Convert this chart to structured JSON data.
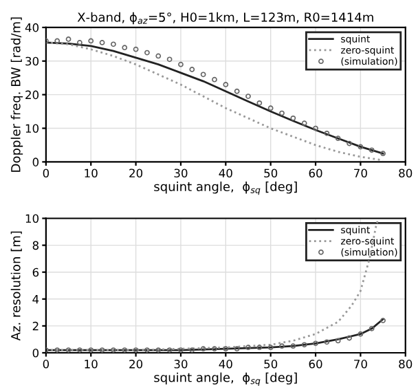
{
  "chart_data": [
    {
      "type": "line",
      "title": "X-band, ϕ$_{az}$=5°, H0=1km, L=123m, R0=1414m",
      "xlabel": "squint angle,  ϕ$_{sq}$ [deg]",
      "ylabel": "Doppler freq. BW [rad/m]",
      "xlim": [
        0,
        80
      ],
      "xticks": [
        0,
        10,
        20,
        30,
        40,
        50,
        60,
        70,
        80
      ],
      "ylim": [
        0,
        40
      ],
      "yticks": [
        0,
        10,
        20,
        30,
        40
      ],
      "grid": true,
      "legend": "top right",
      "series": [
        {
          "name": "squint",
          "color": "#222222",
          "line_style": "solid",
          "x": [
            0,
            5,
            10,
            15,
            20,
            25,
            30,
            35,
            40,
            45,
            50,
            55,
            60,
            65,
            70,
            75
          ],
          "values": [
            35.5,
            35.2,
            34.5,
            33,
            31,
            29,
            26.5,
            24,
            21,
            18,
            15,
            12.2,
            9.5,
            7,
            4.5,
            2.5
          ]
        },
        {
          "name": "zero-squint",
          "color": "#999999",
          "line_style": "dotted",
          "x": [
            0,
            5,
            10,
            15,
            20,
            25,
            30,
            35,
            40,
            45,
            50,
            55,
            60,
            65,
            70,
            75
          ],
          "values": [
            35.5,
            35,
            33.5,
            31.5,
            29,
            26,
            23,
            19.5,
            16,
            13,
            10,
            7.5,
            5,
            3,
            1.5,
            0.5
          ]
        },
        {
          "name": "(simulation)",
          "type": "scatter",
          "marker": "circle",
          "color": "#666666",
          "x": [
            0,
            2.5,
            5,
            7.5,
            10,
            12.5,
            15,
            17.5,
            20,
            22.5,
            25,
            27.5,
            30,
            32.5,
            35,
            37.5,
            40,
            42.5,
            45,
            47.5,
            50,
            52.5,
            55,
            57.5,
            60,
            62.5,
            65,
            67.5,
            70,
            72.5,
            75
          ],
          "values": [
            36,
            36,
            36.5,
            35.5,
            36,
            35.5,
            35,
            34,
            33.5,
            32.5,
            31.5,
            30.5,
            29,
            27.5,
            26,
            24.5,
            23,
            21,
            19.5,
            17.5,
            16,
            14.5,
            13,
            11.5,
            10,
            8.5,
            7,
            5.5,
            4.5,
            3.5,
            2.5
          ]
        }
      ]
    },
    {
      "type": "line",
      "xlabel": "squint angle,  ϕ$_{sq}$ [deg]",
      "ylabel": "Az. resolution [m]",
      "xlim": [
        0,
        80
      ],
      "xticks": [
        0,
        10,
        20,
        30,
        40,
        50,
        60,
        70,
        80
      ],
      "ylim": [
        0,
        10
      ],
      "yticks": [
        0,
        2,
        4,
        6,
        8,
        10
      ],
      "grid": true,
      "legend": "top right",
      "series": [
        {
          "name": "squint",
          "color": "#222222",
          "line_style": "solid",
          "x": [
            0,
            10,
            20,
            30,
            40,
            50,
            55,
            60,
            65,
            70,
            72.5,
            75
          ],
          "values": [
            0.2,
            0.2,
            0.2,
            0.2,
            0.3,
            0.4,
            0.5,
            0.7,
            1.0,
            1.4,
            1.8,
            2.5
          ]
        },
        {
          "name": "zero-squint",
          "color": "#999999",
          "line_style": "dotted",
          "x": [
            0,
            20,
            30,
            40,
            50,
            55,
            60,
            65,
            68,
            70,
            72,
            73.5,
            74
          ],
          "values": [
            0.2,
            0.2,
            0.3,
            0.4,
            0.6,
            0.9,
            1.4,
            2.3,
            3.5,
            4.6,
            7,
            9.5,
            10
          ]
        },
        {
          "name": "(simulation)",
          "type": "scatter",
          "marker": "circle",
          "color": "#666666",
          "x": [
            0,
            2.5,
            5,
            7.5,
            10,
            12.5,
            15,
            17.5,
            20,
            22.5,
            25,
            27.5,
            30,
            32.5,
            35,
            37.5,
            40,
            42.5,
            45,
            47.5,
            50,
            52.5,
            55,
            57.5,
            60,
            62.5,
            65,
            67.5,
            70,
            72.5,
            75
          ],
          "values": [
            0.2,
            0.2,
            0.2,
            0.2,
            0.2,
            0.2,
            0.2,
            0.2,
            0.2,
            0.2,
            0.2,
            0.2,
            0.2,
            0.2,
            0.3,
            0.3,
            0.3,
            0.3,
            0.4,
            0.4,
            0.4,
            0.5,
            0.5,
            0.6,
            0.7,
            0.8,
            0.9,
            1.1,
            1.4,
            1.8,
            2.4
          ]
        }
      ]
    }
  ]
}
